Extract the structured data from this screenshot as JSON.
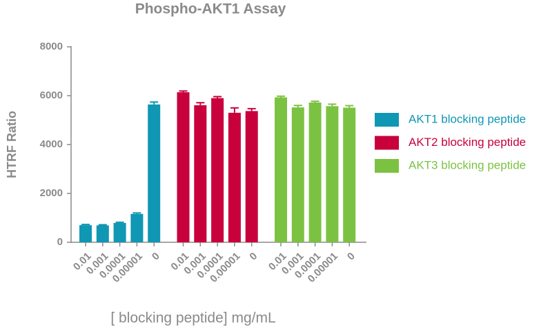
{
  "chart_data": {
    "type": "bar",
    "title": "Phospho-AKT1 Assay",
    "x_label": "[ blocking peptide] mg/mL",
    "y_label": "HTRF Ratio",
    "categories": [
      "0.01",
      "0.001",
      "0.0001",
      "0.00001",
      "0"
    ],
    "series": [
      {
        "name": "AKT1 blocking peptide",
        "color": "#0f97b3",
        "values": [
          700,
          690,
          790,
          1160,
          5640
        ],
        "errors": [
          30,
          30,
          30,
          40,
          100
        ]
      },
      {
        "name": "AKT2 blocking peptide",
        "color": "#c8003c",
        "values": [
          6140,
          5610,
          5900,
          5300,
          5370
        ],
        "errors": [
          50,
          100,
          60,
          200,
          100
        ]
      },
      {
        "name": "AKT3 blocking peptide",
        "color": "#7cc242",
        "values": [
          5930,
          5520,
          5720,
          5570,
          5510
        ],
        "errors": [
          50,
          80,
          50,
          80,
          80
        ]
      }
    ],
    "ylim": [
      0,
      8000
    ],
    "yticks": [
      0,
      2000,
      4000,
      6000,
      8000
    ],
    "legend": "right"
  }
}
